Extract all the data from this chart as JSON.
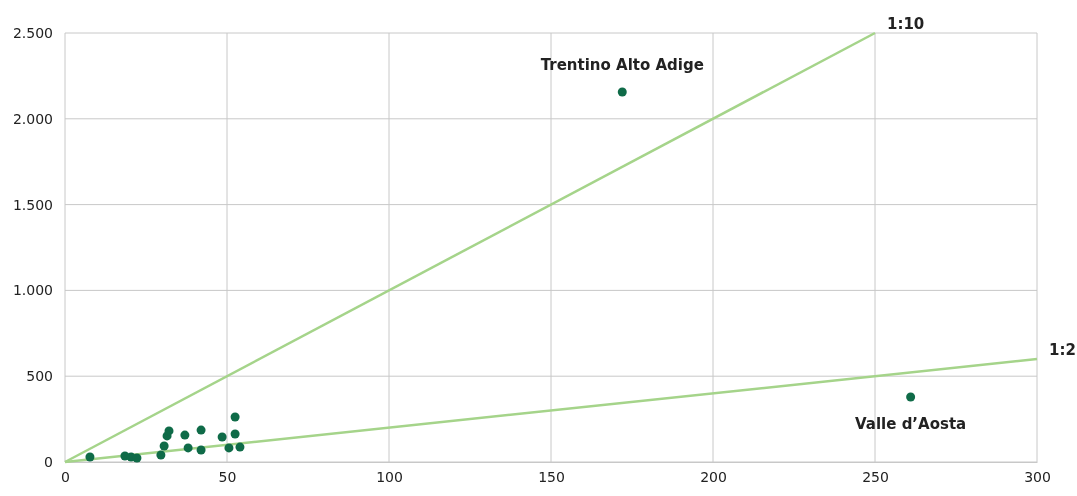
{
  "chart_data": {
    "type": "scatter",
    "xlim": [
      0,
      300
    ],
    "ylim": [
      0,
      2500
    ],
    "xticks": [
      0,
      50,
      100,
      150,
      200,
      250,
      300
    ],
    "yticks": [
      0,
      {
        "value": 500,
        "label": "500"
      },
      {
        "value": 1000,
        "label": "1.000"
      },
      {
        "value": 1500,
        "label": "1.500"
      },
      {
        "value": 2000,
        "label": "2.000"
      },
      {
        "value": 2500,
        "label": "2.500"
      }
    ],
    "grid": true,
    "series": [
      {
        "type": "line",
        "name": "1:10",
        "color": "#a5d48a",
        "x": [
          0,
          250
        ],
        "values": [
          0,
          2500
        ],
        "marker": "none"
      },
      {
        "type": "line",
        "name": "1:2",
        "color": "#a5d48a",
        "x": [
          0,
          300
        ],
        "values": [
          0,
          600
        ],
        "marker": "none"
      },
      {
        "color": "#0f6b48",
        "marker": "circle",
        "x": [
          7.7,
          18.5,
          20.4,
          22.2,
          29.6,
          30.6,
          31.5,
          32.1,
          37,
          38,
          42,
          42,
          48.5,
          50.6,
          52.5,
          52.5,
          54,
          172,
          261
        ],
        "values": [
          29,
          35,
          29,
          23,
          41,
          93,
          152,
          181,
          157,
          82,
          186,
          70,
          146,
          82,
          262,
          163,
          87,
          2156,
          379
        ]
      }
    ],
    "annotations": [
      {
        "text": "Trentino Alto Adige",
        "x": 172,
        "y": 2156
      },
      {
        "text": "Valle d’Aosta",
        "x": 261,
        "y": 379
      }
    ]
  }
}
